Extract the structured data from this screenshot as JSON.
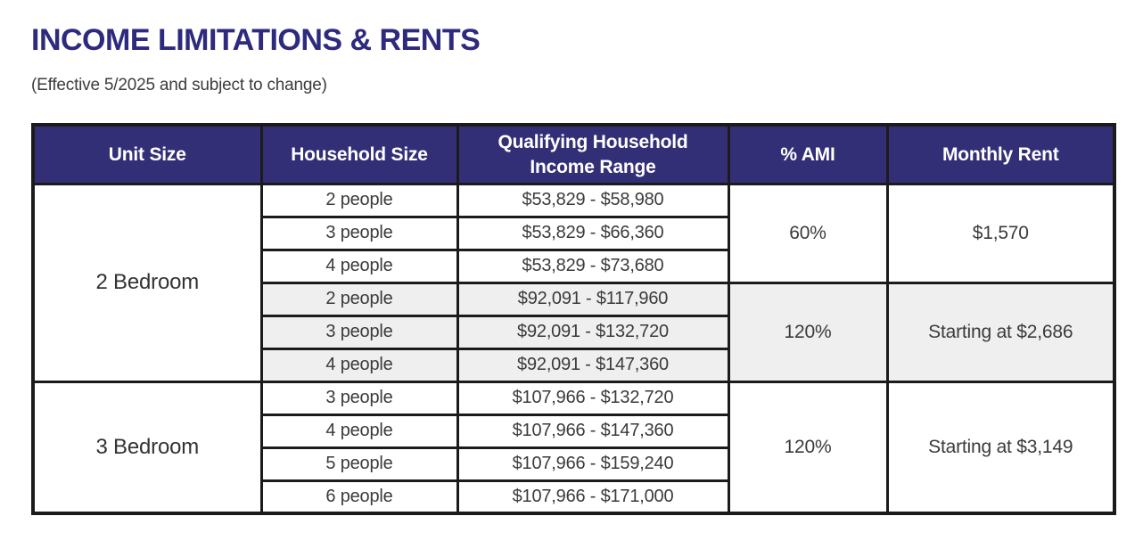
{
  "page": {
    "title": "INCOME LIMITATIONS & RENTS",
    "subtitle": "(Effective 5/2025 and subject to change)"
  },
  "table": {
    "columns": [
      "Unit Size",
      "Household Size",
      "Qualifying Household Income Range",
      "% AMI",
      "Monthly Rent"
    ],
    "groups": [
      {
        "unit_size": "2 Bedroom",
        "blocks": [
          {
            "ami": "60%",
            "rent": "$1,570",
            "shaded": false,
            "rows": [
              {
                "household_size": "2 people",
                "income_range": "$53,829 - $58,980"
              },
              {
                "household_size": "3 people",
                "income_range": "$53,829 - $66,360"
              },
              {
                "household_size": "4 people",
                "income_range": "$53,829 - $73,680"
              }
            ]
          },
          {
            "ami": "120%",
            "rent": "Starting at $2,686",
            "shaded": true,
            "rows": [
              {
                "household_size": "2 people",
                "income_range": "$92,091 - $117,960"
              },
              {
                "household_size": "3 people",
                "income_range": "$92,091 - $132,720"
              },
              {
                "household_size": "4 people",
                "income_range": "$92,091 - $147,360"
              }
            ]
          }
        ]
      },
      {
        "unit_size": "3 Bedroom",
        "blocks": [
          {
            "ami": "120%",
            "rent": "Starting at $3,149",
            "shaded": false,
            "rows": [
              {
                "household_size": "3 people",
                "income_range": "$107,966 - $132,720"
              },
              {
                "household_size": "4 people",
                "income_range": "$107,966 - $147,360"
              },
              {
                "household_size": "5 people",
                "income_range": "$107,966 - $159,240"
              },
              {
                "household_size": "6 people",
                "income_range": "$107,966 - $171,000"
              }
            ]
          }
        ]
      }
    ]
  },
  "colors": {
    "header_bg": "#332f76",
    "header_text": "#ffffff",
    "title_text": "#2e2a7d",
    "body_text": "#3b3b3b",
    "shaded_row_bg": "#efefef",
    "border": "#1b1b1b"
  }
}
